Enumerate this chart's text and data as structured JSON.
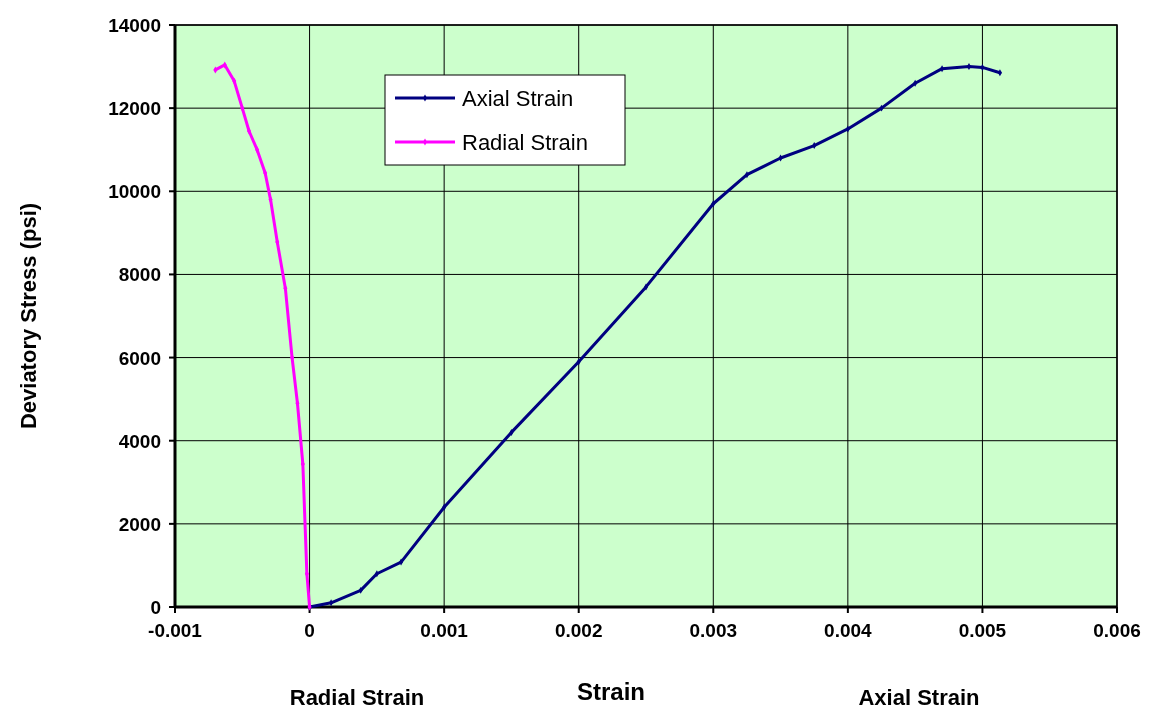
{
  "chart_data": {
    "type": "line",
    "xlabel": "Strain",
    "ylabel": "Deviatory Stress (psi)",
    "annotations": [
      "Radial Strain",
      "Axial Strain"
    ],
    "xlim": [
      -0.001,
      0.006
    ],
    "xticks": [
      -0.001,
      0,
      0.001,
      0.002,
      0.003,
      0.004,
      0.005,
      0.006
    ],
    "ylim": [
      0,
      14000
    ],
    "yticks": [
      0,
      2000,
      4000,
      6000,
      8000,
      10000,
      12000,
      14000
    ],
    "grid": true,
    "legend": "top left",
    "marker": "diamond",
    "line_style": "solid",
    "series": [
      {
        "name": "Axial Strain",
        "color": "#000080",
        "x": [
          0,
          0.00016,
          0.00038,
          0.0005,
          0.00068,
          0.001,
          0.0015,
          0.002,
          0.0025,
          0.003,
          0.00325,
          0.0035,
          0.00375,
          0.004,
          0.00425,
          0.0045,
          0.0047,
          0.0049,
          0.005,
          0.00513
        ],
        "values": [
          0,
          100,
          400,
          800,
          1080,
          2400,
          4200,
          5900,
          7700,
          9700,
          10400,
          10800,
          11100,
          11500,
          12000,
          12600,
          12950,
          13000,
          12980,
          12850
        ]
      },
      {
        "name": "Radial Strain",
        "color": "#ff00ff",
        "x": [
          0,
          -2e-05,
          -5e-05,
          -9e-05,
          -0.00013,
          -0.00018,
          -0.00024,
          -0.00029,
          -0.00033,
          -0.00039,
          -0.00045,
          -0.0005,
          -0.00056,
          -0.00063,
          -0.0007
        ],
        "values": [
          0,
          800,
          3440,
          4900,
          6000,
          7670,
          8780,
          9800,
          10440,
          11000,
          11450,
          12000,
          12650,
          13040,
          12920
        ]
      }
    ]
  }
}
